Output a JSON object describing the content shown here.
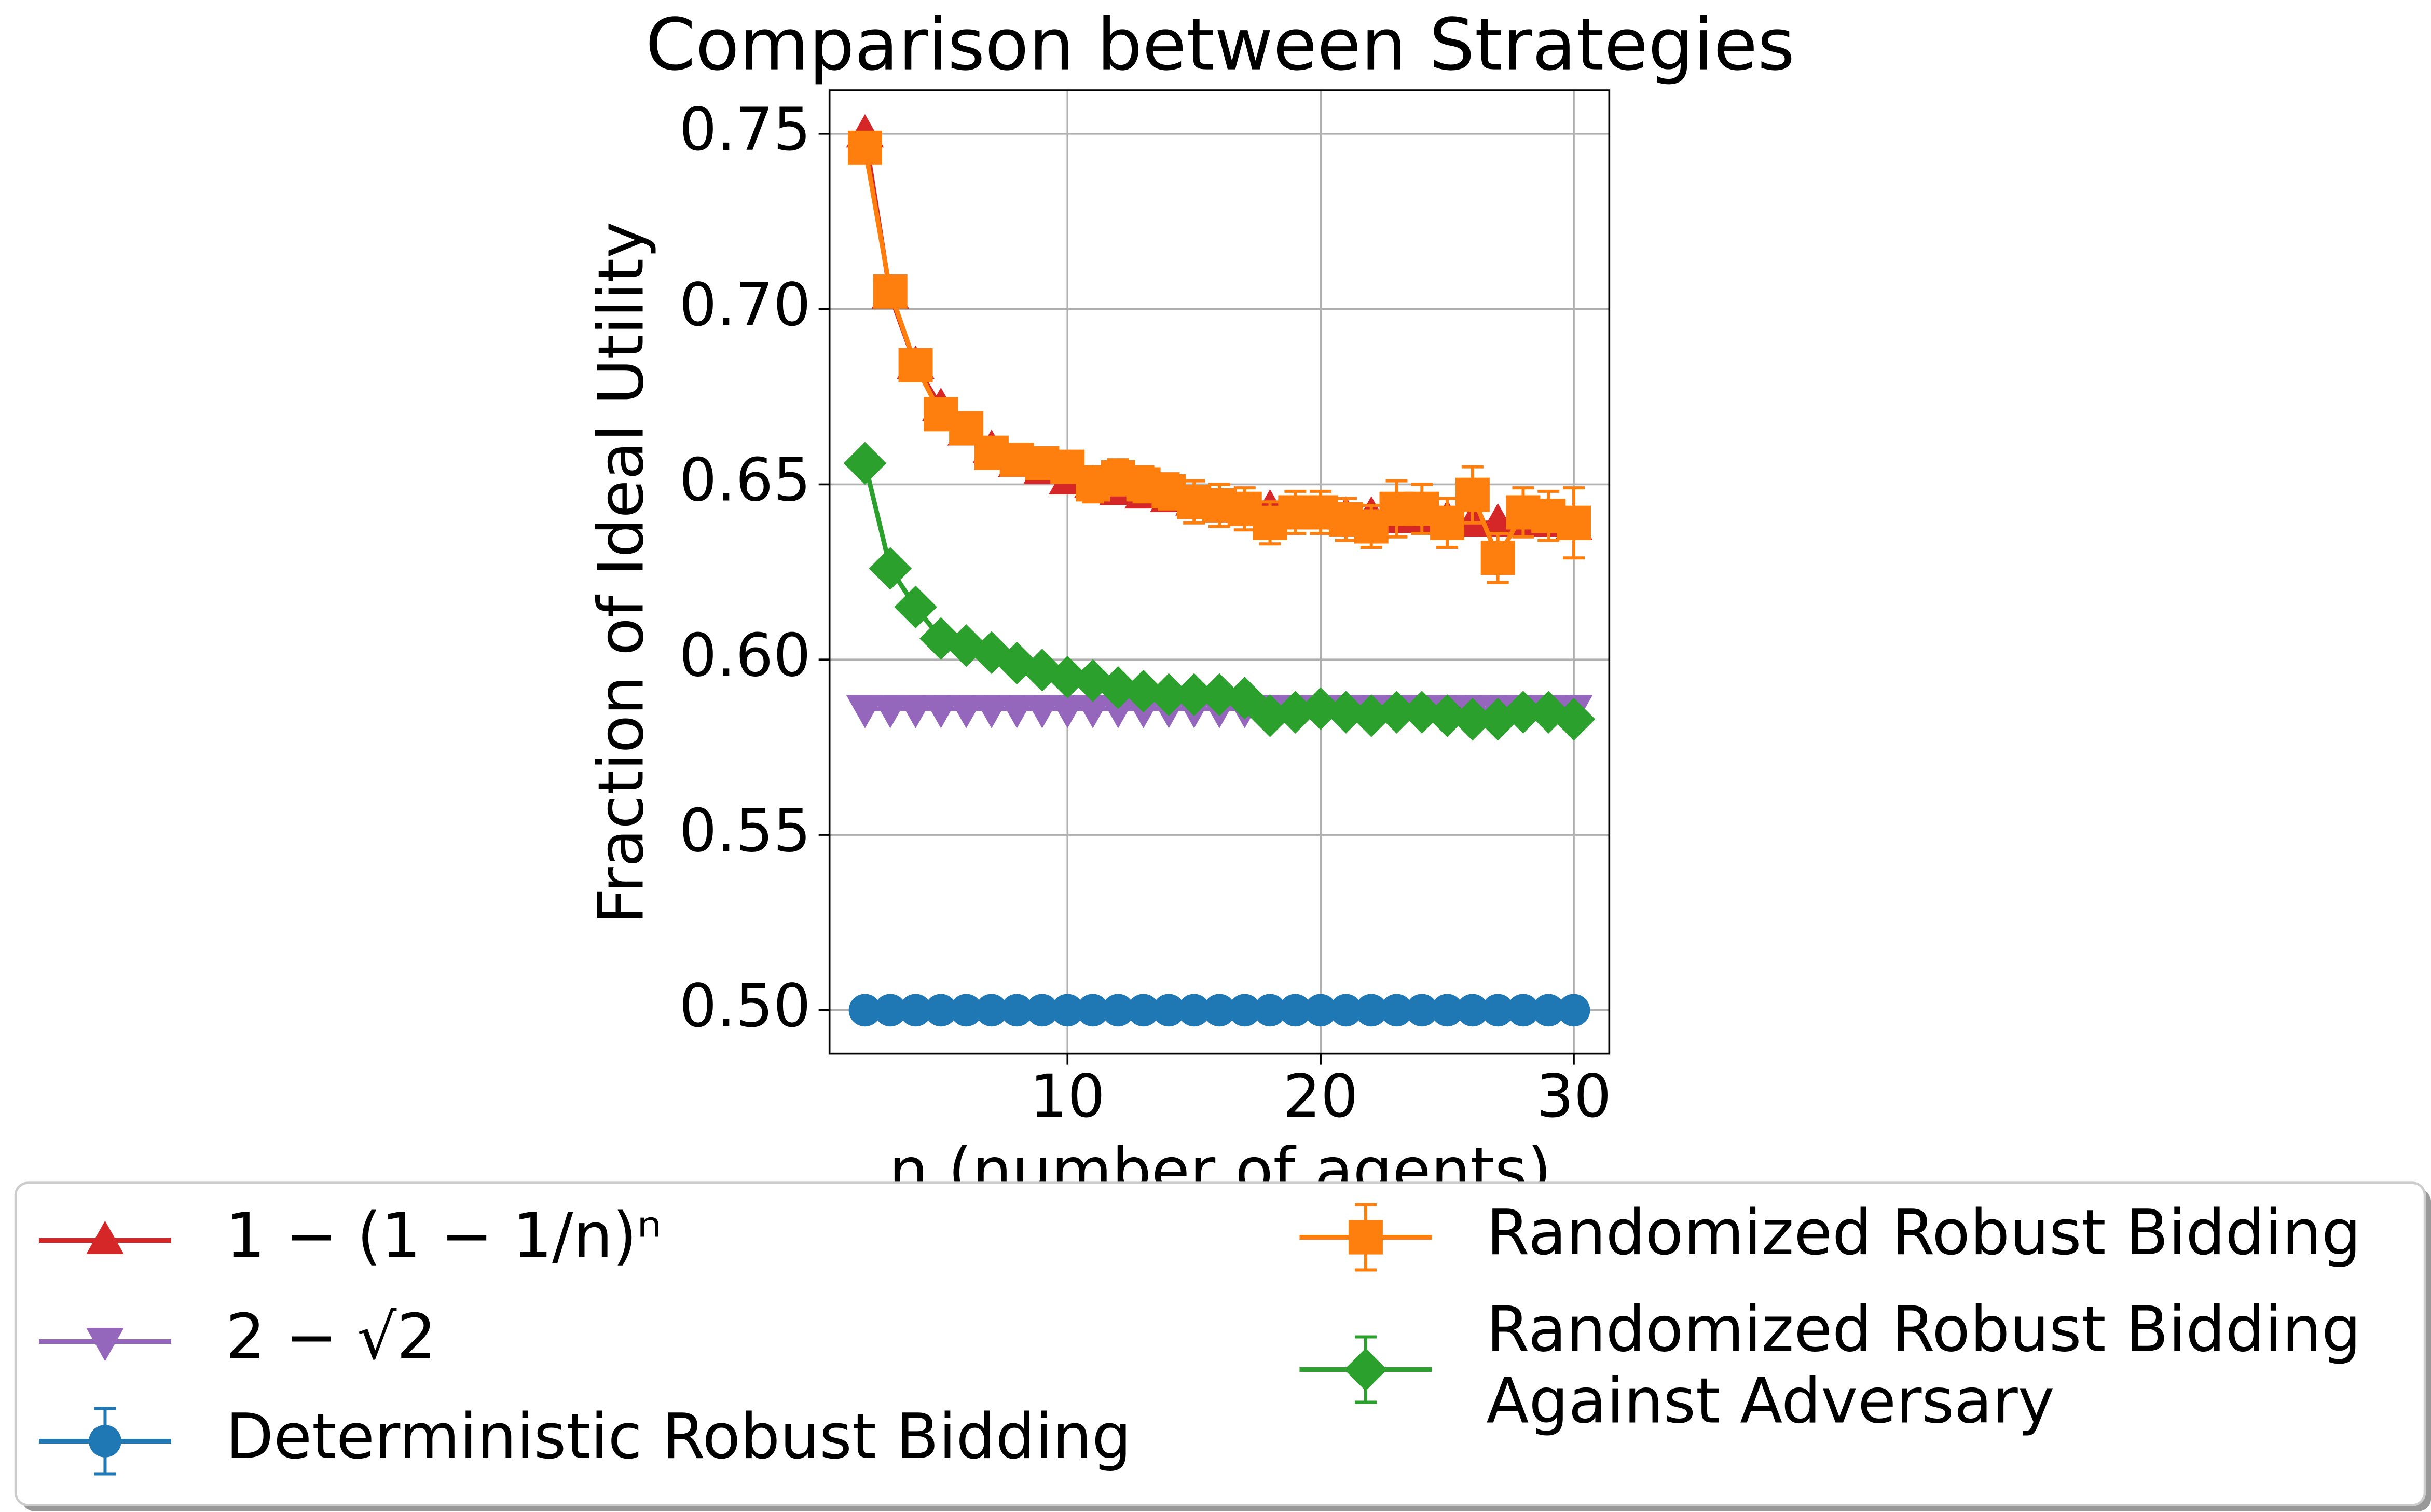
{
  "chart_data": {
    "type": "line",
    "title": "Comparison between Strategies",
    "xlabel": "n (number of agents)",
    "ylabel": "Fraction of Ideal Utility",
    "x": [
      2,
      3,
      4,
      5,
      6,
      7,
      8,
      9,
      10,
      11,
      12,
      13,
      14,
      15,
      16,
      17,
      18,
      19,
      20,
      21,
      22,
      23,
      24,
      25,
      26,
      27,
      28,
      29,
      30
    ],
    "xlim": [
      0.6,
      31.4
    ],
    "ylim": [
      0.4876,
      0.7624
    ],
    "xticks": [
      10,
      20,
      30
    ],
    "yticks": [
      {
        "value": 0.5,
        "label": "0.50"
      },
      {
        "value": 0.55,
        "label": "0.55"
      },
      {
        "value": 0.6,
        "label": "0.60"
      },
      {
        "value": 0.65,
        "label": "0.65"
      },
      {
        "value": 0.7,
        "label": "0.70"
      },
      {
        "value": 0.75,
        "label": "0.75"
      }
    ],
    "grid": true,
    "legend": "lower center",
    "series": [
      {
        "name": "1 − (1 − 1/n)ⁿ",
        "color": "#d62728",
        "marker": "^",
        "values": [
          0.75,
          0.704,
          0.684,
          0.672,
          0.665,
          0.66,
          0.656,
          0.654,
          0.651,
          0.65,
          0.648,
          0.647,
          0.646,
          0.645,
          0.644,
          0.643,
          0.643,
          0.642,
          0.642,
          0.641,
          0.641,
          0.64,
          0.64,
          0.64,
          0.639,
          0.639,
          0.639,
          0.639,
          0.638
        ]
      },
      {
        "name": "2 − √2",
        "color": "#9467bd",
        "marker": "v",
        "values": [
          0.586,
          0.586,
          0.586,
          0.586,
          0.586,
          0.586,
          0.586,
          0.586,
          0.586,
          0.586,
          0.586,
          0.586,
          0.586,
          0.586,
          0.586,
          0.586,
          0.586,
          0.586,
          0.586,
          0.586,
          0.586,
          0.586,
          0.586,
          0.586,
          0.586,
          0.586,
          0.586,
          0.586,
          0.586
        ]
      },
      {
        "name": "Deterministic Robust Bidding",
        "color": "#1f77b4",
        "marker": "o",
        "values": [
          0.5,
          0.5,
          0.5,
          0.5,
          0.5,
          0.5,
          0.5,
          0.5,
          0.5,
          0.5,
          0.5,
          0.5,
          0.5,
          0.5,
          0.5,
          0.5,
          0.5,
          0.5,
          0.5,
          0.5,
          0.5,
          0.5,
          0.5,
          0.5,
          0.5,
          0.5,
          0.5,
          0.5,
          0.5
        ],
        "errors": [
          0,
          0,
          0,
          0,
          0,
          0,
          0,
          0,
          0,
          0,
          0,
          0,
          0,
          0,
          0,
          0,
          0,
          0,
          0,
          0,
          0,
          0,
          0,
          0,
          0,
          0,
          0,
          0,
          0
        ]
      },
      {
        "name": "Randomized Robust Bidding",
        "color": "#ff7f0e",
        "marker": "s",
        "values": [
          0.746,
          0.705,
          0.684,
          0.67,
          0.666,
          0.659,
          0.657,
          0.656,
          0.655,
          0.65,
          0.652,
          0.65,
          0.648,
          0.645,
          0.644,
          0.643,
          0.639,
          0.642,
          0.642,
          0.64,
          0.638,
          0.643,
          0.643,
          0.639,
          0.647,
          0.629,
          0.642,
          0.641,
          0.639
        ],
        "errors": [
          0.002,
          0.002,
          0.002,
          0.003,
          0.003,
          0.003,
          0.003,
          0.003,
          0.004,
          0.005,
          0.005,
          0.005,
          0.005,
          0.006,
          0.006,
          0.006,
          0.006,
          0.006,
          0.006,
          0.006,
          0.006,
          0.008,
          0.007,
          0.007,
          0.008,
          0.007,
          0.007,
          0.007,
          0.01
        ]
      },
      {
        "name": "Randomized Robust Bidding\nAgainst Adversary",
        "color": "#2ca02c",
        "marker": "D",
        "values": [
          0.656,
          0.626,
          0.615,
          0.606,
          0.604,
          0.602,
          0.599,
          0.597,
          0.595,
          0.594,
          0.592,
          0.591,
          0.59,
          0.59,
          0.59,
          0.589,
          0.584,
          0.585,
          0.586,
          0.585,
          0.584,
          0.585,
          0.585,
          0.584,
          0.583,
          0.583,
          0.585,
          0.585,
          0.583
        ],
        "errors": [
          0.001,
          0.001,
          0.001,
          0.001,
          0.001,
          0.001,
          0.001,
          0.001,
          0.001,
          0.001,
          0.001,
          0.001,
          0.001,
          0.001,
          0.001,
          0.001,
          0.001,
          0.001,
          0.001,
          0.001,
          0.001,
          0.001,
          0.001,
          0.001,
          0.001,
          0.001,
          0.001,
          0.001,
          0.001
        ]
      }
    ]
  }
}
